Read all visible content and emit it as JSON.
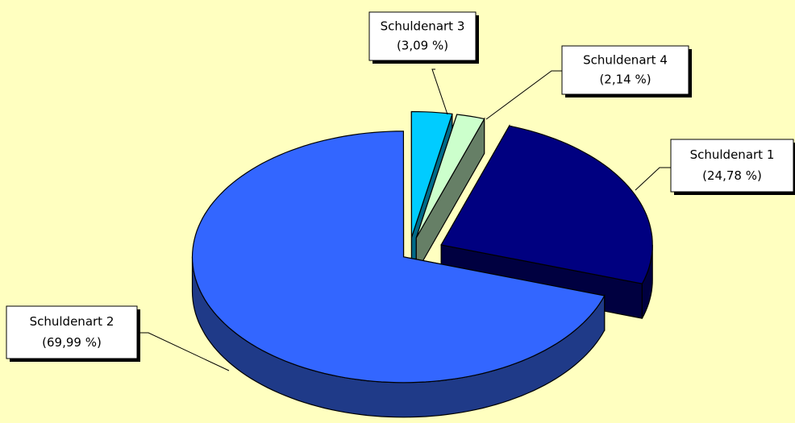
{
  "chart_data": {
    "type": "pie",
    "categories": [
      "Schuldenart 1",
      "Schuldenart 2",
      "Schuldenart 3",
      "Schuldenart 4"
    ],
    "values": [
      24.78,
      69.99,
      3.09,
      2.14
    ],
    "value_labels": [
      "(24,78 %)",
      "(69,99 %)",
      "(3,09 %)",
      "(2,14 %)"
    ],
    "colors": [
      "#000080",
      "#3366ff",
      "#00ccff",
      "#ccffcc"
    ],
    "side_colors": [
      "#000040",
      "#1f3a88",
      "#006a88",
      "#667f66"
    ]
  }
}
